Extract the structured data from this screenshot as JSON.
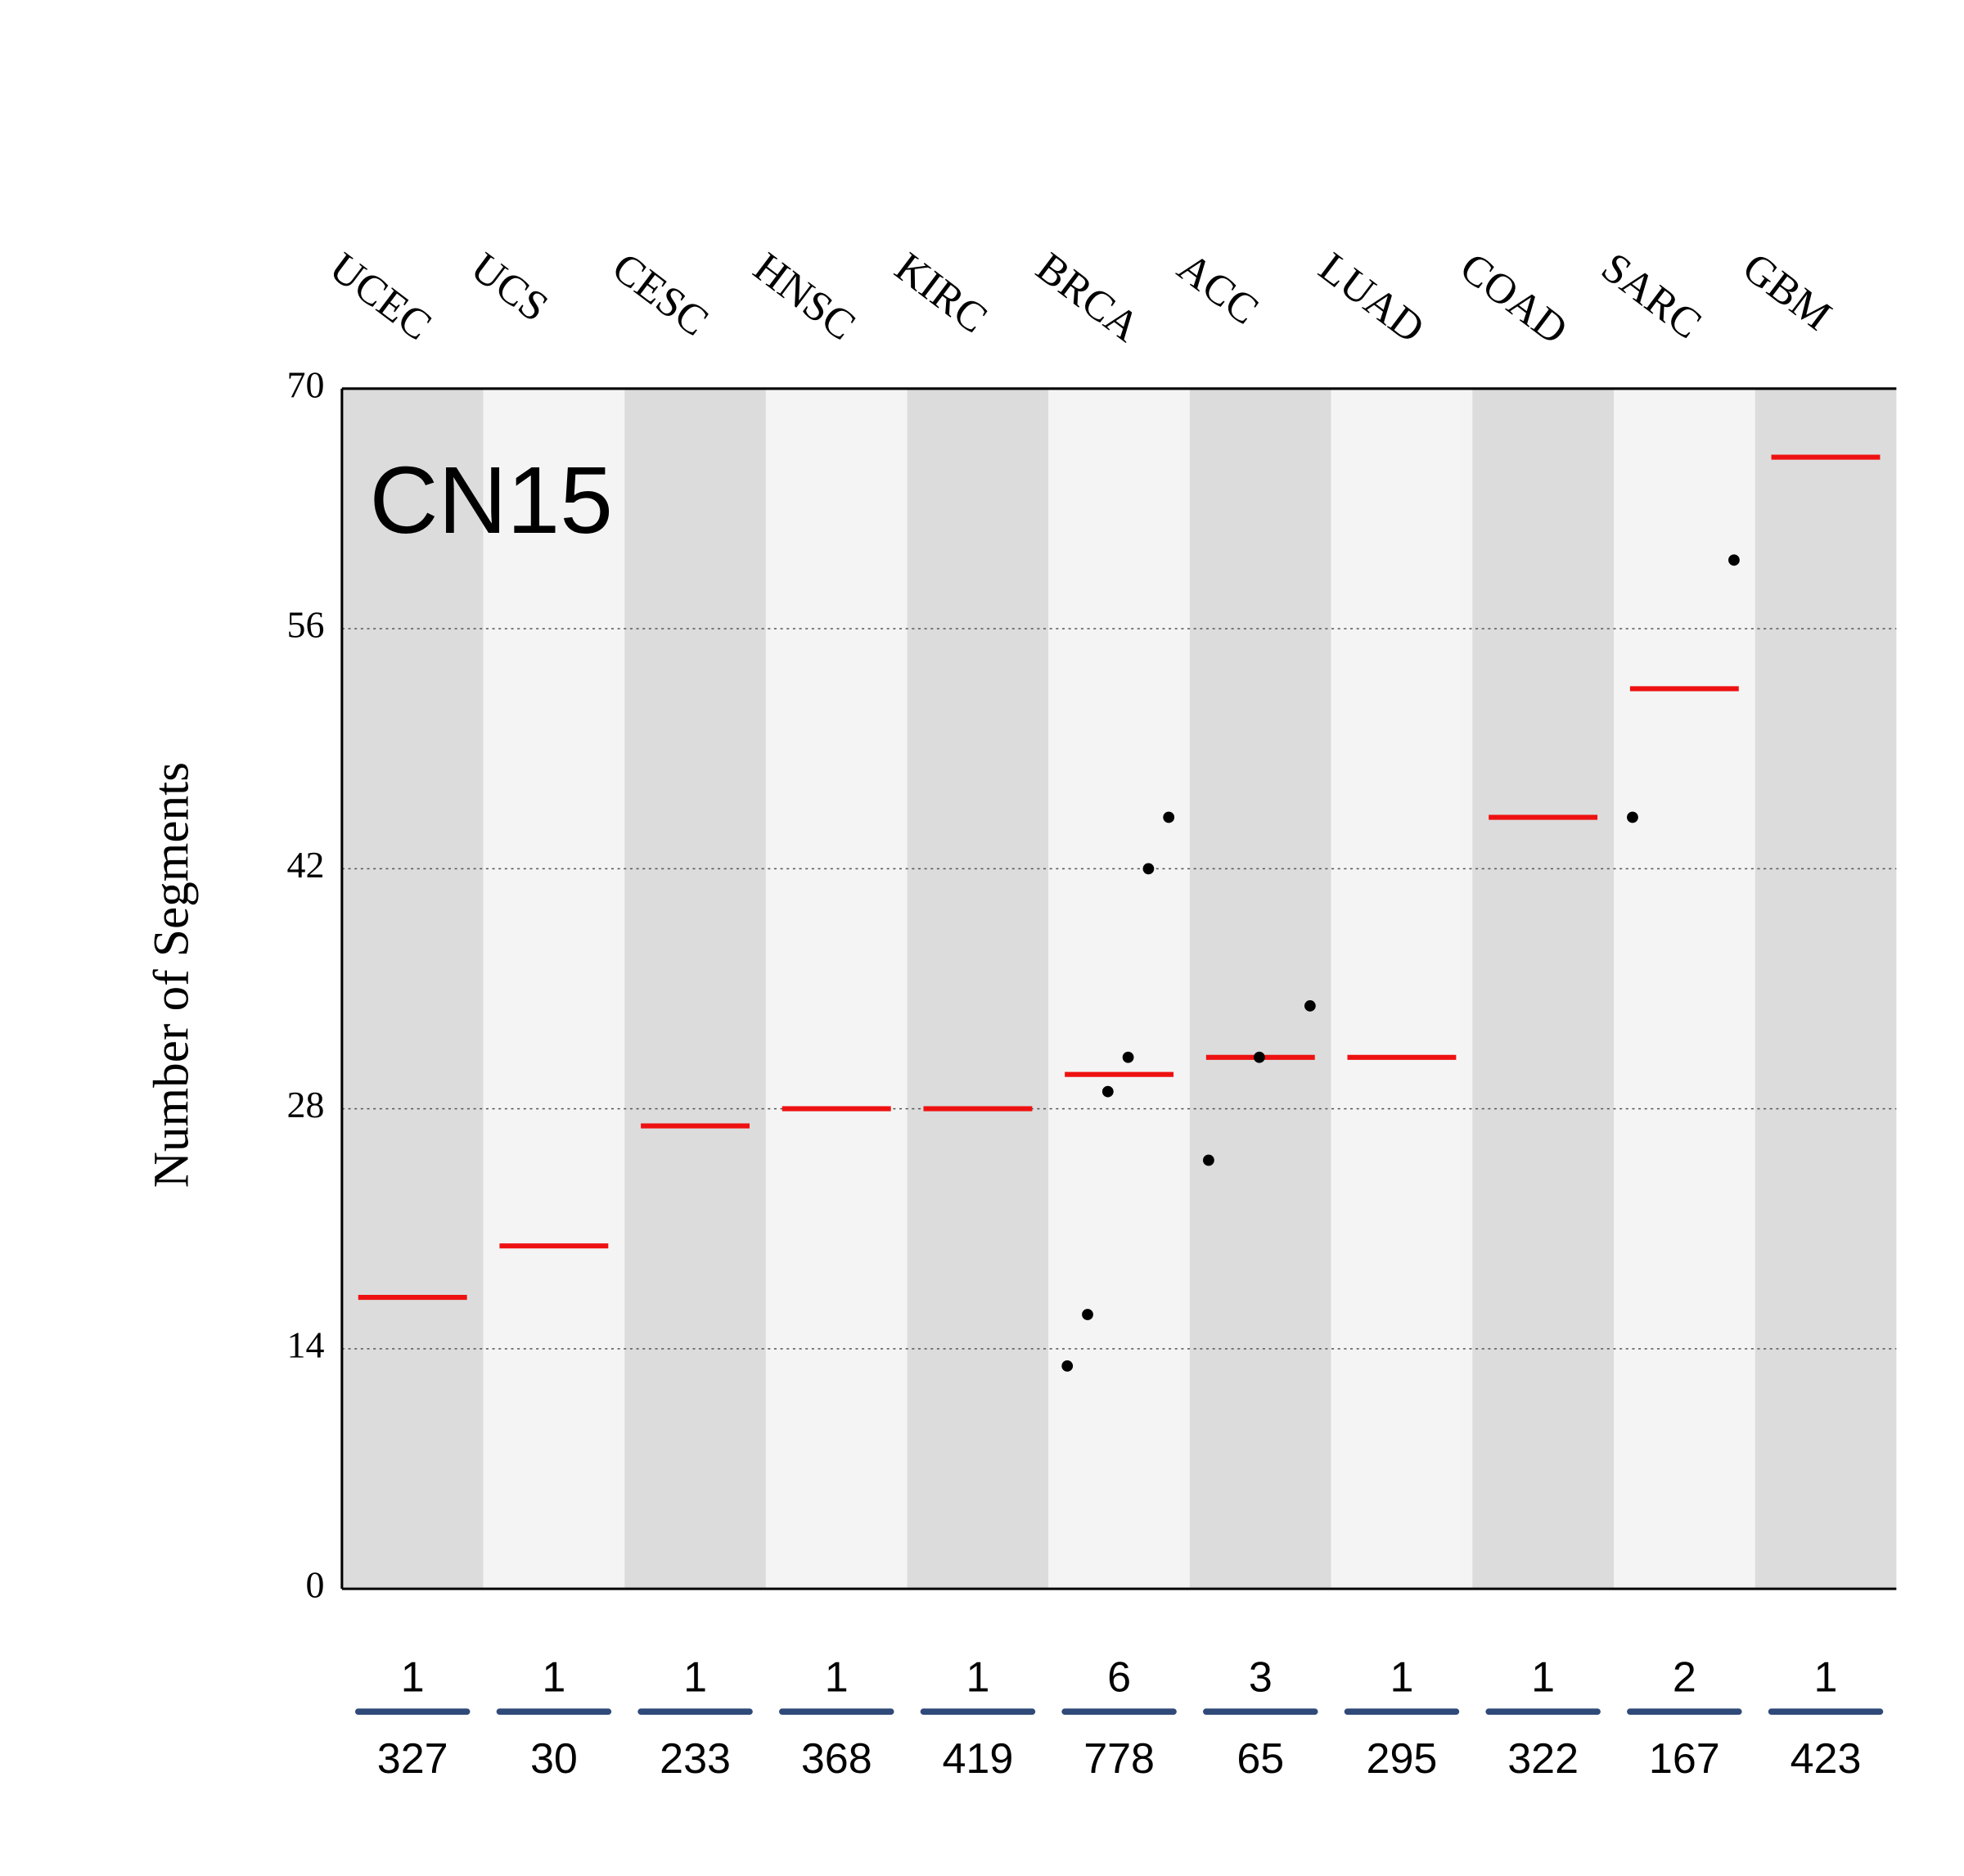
{
  "chart_data": {
    "type": "median_dot",
    "label": "CN15",
    "y_label": "Number of Segments",
    "categories": [
      "UCEC",
      "UCS",
      "CESC",
      "HNSC",
      "KIRC",
      "BRCA",
      "ACC",
      "LUAD",
      "COAD",
      "SARC",
      "GBM"
    ],
    "medians": [
      17,
      20,
      27,
      28,
      28,
      30,
      31,
      31,
      45,
      52.5,
      66
    ],
    "points": [
      [],
      [],
      [],
      [],
      [],
      [
        13,
        16,
        29,
        31,
        42,
        45
      ],
      [
        25,
        31,
        34
      ],
      [],
      [],
      [
        45,
        60
      ],
      []
    ],
    "counts": [
      1,
      1,
      1,
      1,
      1,
      6,
      3,
      1,
      1,
      2,
      1
    ],
    "totals": [
      327,
      30,
      233,
      368,
      419,
      778,
      65,
      295,
      322,
      167,
      423
    ],
    "ylim": [
      0,
      70
    ],
    "yticks": [
      0,
      14,
      28,
      42,
      56,
      70
    ],
    "grid": true,
    "median_color": "#ee1111",
    "point_color": "#000000",
    "band_colors": [
      "#dcdcdc",
      "#f4f4f4"
    ],
    "divider_color": "#2f4a78"
  }
}
